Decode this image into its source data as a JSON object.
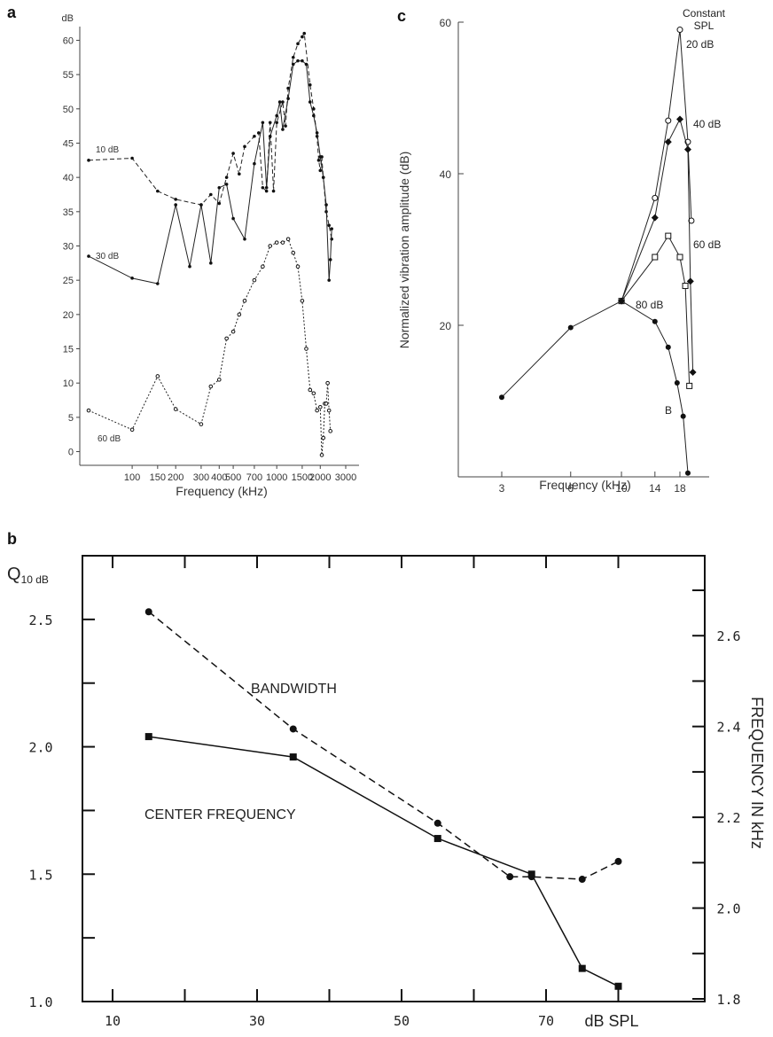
{
  "panels": {
    "a": {
      "label": "a"
    },
    "b": {
      "label": "b"
    },
    "c": {
      "label": "c"
    }
  },
  "chart_data": [
    {
      "id": "a",
      "type": "line",
      "xlabel": "Frequency (kHz)",
      "ylabel": "dB",
      "xscale": "log",
      "ylim": [
        -2,
        62
      ],
      "x_ticks": [
        {
          "v": 100,
          "t": "100"
        },
        {
          "v": 150,
          "t": "150"
        },
        {
          "v": 200,
          "t": "200"
        },
        {
          "v": 300,
          "t": "300"
        },
        {
          "v": 400,
          "t": "400"
        },
        {
          "v": 500,
          "t": "500"
        },
        {
          "v": 700,
          "t": "700"
        },
        {
          "v": 1000,
          "t": "1000"
        },
        {
          "v": 1500,
          "t": "1500"
        },
        {
          "v": 2000,
          "t": "2000"
        },
        {
          "v": 3000,
          "t": "3000"
        }
      ],
      "y_ticks": [
        0,
        5,
        10,
        15,
        20,
        25,
        30,
        35,
        40,
        45,
        50,
        55,
        60
      ],
      "series": [
        {
          "name": "10 dB",
          "style": "dashed",
          "marker": "dot",
          "points": [
            [
              50,
              42.5
            ],
            [
              100,
              42.8
            ],
            [
              150,
              38
            ],
            [
              200,
              36.8
            ],
            [
              300,
              36
            ],
            [
              350,
              37.5
            ],
            [
              400,
              36.2
            ],
            [
              450,
              40
            ],
            [
              500,
              43.5
            ],
            [
              550,
              40.5
            ],
            [
              600,
              44.5
            ],
            [
              700,
              46
            ],
            [
              750,
              46.5
            ],
            [
              800,
              38.5
            ],
            [
              850,
              38
            ],
            [
              900,
              48
            ],
            [
              950,
              38
            ],
            [
              1000,
              48
            ],
            [
              1100,
              51
            ],
            [
              1150,
              47.5
            ],
            [
              1200,
              53
            ],
            [
              1300,
              57.5
            ],
            [
              1400,
              59.5
            ],
            [
              1500,
              60.5
            ],
            [
              1550,
              61
            ],
            [
              1700,
              53.5
            ],
            [
              1800,
              50
            ],
            [
              1900,
              46
            ],
            [
              1950,
              42.5
            ],
            [
              2000,
              41
            ],
            [
              2050,
              43
            ],
            [
              2100,
              40
            ],
            [
              2200,
              35
            ],
            [
              2300,
              33
            ],
            [
              2400,
              31
            ]
          ]
        },
        {
          "name": "30 dB",
          "style": "solid",
          "marker": "dot",
          "points": [
            [
              50,
              28.5
            ],
            [
              100,
              25.3
            ],
            [
              150,
              24.5
            ],
            [
              200,
              36
            ],
            [
              250,
              27
            ],
            [
              300,
              36
            ],
            [
              350,
              27.5
            ],
            [
              400,
              38.5
            ],
            [
              450,
              39
            ],
            [
              500,
              34
            ],
            [
              600,
              31
            ],
            [
              700,
              42
            ],
            [
              800,
              48
            ],
            [
              850,
              38.5
            ],
            [
              900,
              46
            ],
            [
              1000,
              49
            ],
            [
              1050,
              51
            ],
            [
              1100,
              47
            ],
            [
              1200,
              51.5
            ],
            [
              1300,
              56.5
            ],
            [
              1400,
              57
            ],
            [
              1500,
              57
            ],
            [
              1600,
              56.5
            ],
            [
              1700,
              51
            ],
            [
              1800,
              49
            ],
            [
              1900,
              46.5
            ],
            [
              2000,
              43
            ],
            [
              2100,
              40
            ],
            [
              2200,
              36
            ],
            [
              2300,
              25
            ],
            [
              2350,
              28
            ],
            [
              2400,
              32.5
            ]
          ]
        },
        {
          "name": "60 dB",
          "style": "dotted",
          "marker": "open",
          "points": [
            [
              50,
              6
            ],
            [
              100,
              3.2
            ],
            [
              150,
              11
            ],
            [
              200,
              6.2
            ],
            [
              300,
              4
            ],
            [
              350,
              9.5
            ],
            [
              400,
              10.5
            ],
            [
              450,
              16.5
            ],
            [
              500,
              17.5
            ],
            [
              550,
              20
            ],
            [
              600,
              22
            ],
            [
              700,
              25
            ],
            [
              800,
              27
            ],
            [
              900,
              30
            ],
            [
              1000,
              30.5
            ],
            [
              1100,
              30.5
            ],
            [
              1200,
              31
            ],
            [
              1300,
              29
            ],
            [
              1400,
              27
            ],
            [
              1500,
              22
            ],
            [
              1600,
              15
            ],
            [
              1700,
              9
            ],
            [
              1800,
              8.5
            ],
            [
              1900,
              6
            ],
            [
              2000,
              6.5
            ],
            [
              2050,
              -0.5
            ],
            [
              2100,
              2
            ],
            [
              2150,
              7
            ],
            [
              2200,
              7
            ],
            [
              2250,
              10
            ],
            [
              2300,
              6
            ],
            [
              2350,
              3
            ]
          ]
        }
      ]
    },
    {
      "id": "b",
      "type": "line",
      "xlabel": "dB SPL",
      "ylabel": "Q10 dB",
      "ylabel_right": "FREQUENCY IN kHz",
      "xlim": [
        5,
        85
      ],
      "ylim": [
        1.0,
        2.75
      ],
      "ylim_right": [
        1.8,
        2.7
      ],
      "x_ticks": [
        10,
        30,
        50,
        70
      ],
      "y_ticks": [
        {
          "v": 1.0,
          "t": "1.0"
        },
        {
          "v": 1.5,
          "t": "1.5"
        },
        {
          "v": 2.0,
          "t": "2.0"
        },
        {
          "v": 2.5,
          "t": "2.5"
        }
      ],
      "y_ticks_right": [
        {
          "v": 1.8,
          "t": "1.8"
        },
        {
          "v": 2.0,
          "t": "2.0"
        },
        {
          "v": 2.2,
          "t": "2.2"
        },
        {
          "v": 2.4,
          "t": "2.4"
        },
        {
          "v": 2.6,
          "t": "2.6"
        }
      ],
      "series": [
        {
          "name": "BANDWIDTH",
          "style": "dashed",
          "marker": "dot",
          "points": [
            [
              15,
              2.53
            ],
            [
              35,
              2.07
            ],
            [
              55,
              1.7
            ],
            [
              65,
              1.49
            ],
            [
              68,
              1.49
            ],
            [
              75,
              1.48
            ],
            [
              80,
              1.55
            ]
          ]
        },
        {
          "name": "CENTER FREQUENCY",
          "style": "solid",
          "marker": "square",
          "points": [
            [
              15,
              2.04
            ],
            [
              35,
              1.96
            ],
            [
              55,
              1.64
            ],
            [
              68,
              1.5
            ],
            [
              75,
              1.13
            ],
            [
              80,
              1.06
            ]
          ]
        }
      ]
    },
    {
      "id": "c",
      "type": "line",
      "xlabel": "Frequency (kHz)",
      "ylabel": "Normalized vibration amplitude (dB)",
      "xscale": "log",
      "ylim": [
        0,
        60
      ],
      "x_ticks": [
        {
          "v": 3,
          "t": "3"
        },
        {
          "v": 6,
          "t": "6"
        },
        {
          "v": 10,
          "t": "10"
        },
        {
          "v": 14,
          "t": "14"
        },
        {
          "v": 18,
          "t": "18"
        }
      ],
      "y_ticks": [
        {
          "v": 20,
          "t": "20"
        },
        {
          "v": 40,
          "t": "40"
        },
        {
          "v": 60,
          "t": "60"
        }
      ],
      "annotations": [
        "Constant",
        "SPL",
        "B"
      ],
      "series": [
        {
          "name": "20 dB",
          "marker": "open",
          "points": [
            [
              10,
              23.2
            ],
            [
              14,
              36.8
            ],
            [
              16,
              47
            ],
            [
              18,
              59
            ],
            [
              19.5,
              44.2
            ],
            [
              20.2,
              33.8
            ]
          ]
        },
        {
          "name": "40 dB",
          "marker": "diamond",
          "points": [
            [
              10,
              23.2
            ],
            [
              14,
              34.2
            ],
            [
              16,
              44.2
            ],
            [
              18,
              47.2
            ],
            [
              19.5,
              43.2
            ],
            [
              20,
              25.8
            ],
            [
              20.5,
              13.8
            ]
          ]
        },
        {
          "name": "60 dB",
          "marker": "opensquare",
          "points": [
            [
              10,
              23.2
            ],
            [
              14,
              29
            ],
            [
              16,
              31.8
            ],
            [
              18,
              29
            ],
            [
              19,
              25.2
            ],
            [
              19.8,
              12
            ]
          ]
        },
        {
          "name": "80 dB",
          "marker": "dot",
          "points": [
            [
              3,
              10.5
            ],
            [
              6,
              19.7
            ],
            [
              10,
              23.2
            ],
            [
              14,
              20.5
            ],
            [
              16,
              17.1
            ],
            [
              17.5,
              12.4
            ],
            [
              18.6,
              8
            ],
            [
              19.5,
              0.5
            ]
          ]
        }
      ]
    }
  ]
}
